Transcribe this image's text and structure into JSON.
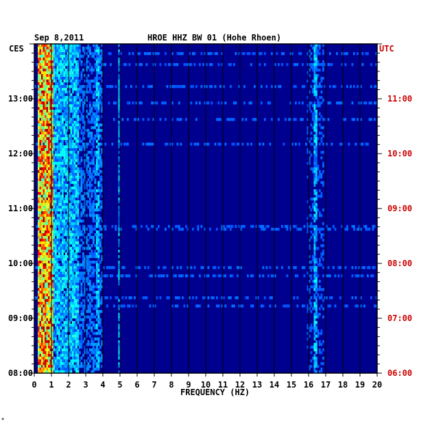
{
  "header": {
    "date": "Sep 8,2011",
    "station": "HROE HHZ BW 01 (Hohe Rhoen)"
  },
  "timezones": {
    "left": "CES",
    "right": "UTC"
  },
  "corner_mark": "*",
  "colors": {
    "background": "#00008f",
    "grid": "#000000",
    "utc_labels": "#cc0000",
    "local_labels": "#000000"
  },
  "chart_data": {
    "type": "heatmap",
    "title": "HROE HHZ BW 01 (Hohe Rhoen)",
    "xlabel": "FREQUENCY (HZ)",
    "x_ticks": [
      0,
      1,
      2,
      3,
      4,
      5,
      6,
      7,
      8,
      9,
      10,
      11,
      12,
      13,
      14,
      15,
      16,
      17,
      18,
      19,
      20
    ],
    "xlim": [
      0,
      20
    ],
    "y_left_ticks": [
      "13:00",
      "12:00",
      "11:00",
      "10:00",
      "09:00",
      "08:00"
    ],
    "y_right_ticks": [
      "11:00",
      "10:00",
      "09:00",
      "08:00",
      "07:00",
      "06:00"
    ],
    "ylim_hours_local": [
      8.0,
      14.0
    ],
    "y_orientation": "time increases upward",
    "colormap": "jet",
    "grid": true,
    "energy_bands": [
      {
        "f_min": 0.2,
        "f_max": 1.1,
        "level": 0.75
      },
      {
        "f_min": 1.1,
        "f_max": 2.6,
        "level": 0.32
      },
      {
        "f_min": 2.6,
        "f_max": 4.0,
        "level": 0.22
      },
      {
        "f_min": 4.0,
        "f_max": 5.2,
        "level": 0.12
      },
      {
        "f_min": 15.9,
        "f_max": 16.9,
        "level": 0.18
      }
    ],
    "steady_lines_hz": [
      3.7,
      4.95,
      16.4
    ]
  }
}
